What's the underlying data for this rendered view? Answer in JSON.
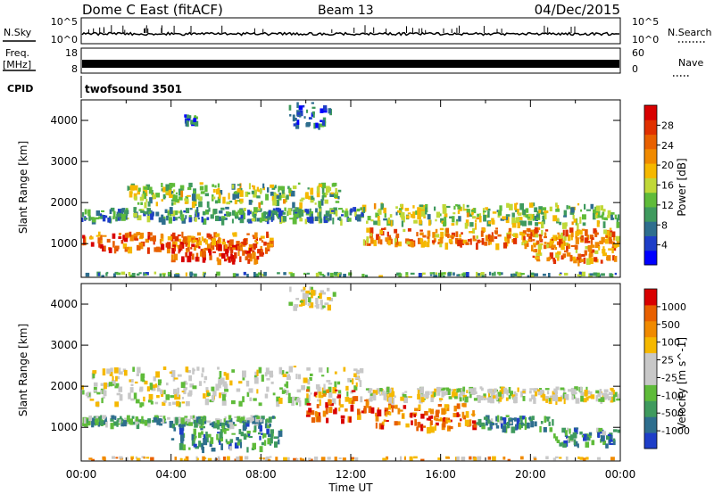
{
  "header": {
    "title": "Dome C East (fitACF)",
    "beam": "Beam 13",
    "date": "04/Dec/2015"
  },
  "noise_panel": {
    "left_label": "N.Sky",
    "left_ticks": [
      "10^5",
      "10^0"
    ],
    "right_ticks": [
      "10^5",
      "10^0"
    ],
    "right_label": "N.Search"
  },
  "freq_panel": {
    "left_label_1": "Freq.",
    "left_label_2": "[MHz]",
    "left_ticks": [
      "18",
      "8"
    ],
    "right_ticks": [
      "60",
      "0"
    ],
    "right_label": "Nave"
  },
  "cpid_panel": {
    "label": "CPID",
    "text": "twofsound 3501"
  },
  "colors": {
    "ink": "#000000",
    "power_scale": [
      "#0000ff",
      "#1e3ec8",
      "#2e6e8e",
      "#3f9a5e",
      "#5fbb3a",
      "#c0d838",
      "#f5b800",
      "#f08a00",
      "#e86000",
      "#e03000",
      "#d80000"
    ],
    "velocity_scale": [
      "#1e3ec8",
      "#2e6e8e",
      "#3f9a5e",
      "#5fbb3a",
      "#c8c8c8",
      "#c8c8c8",
      "#f5b800",
      "#f08a00",
      "#e86000",
      "#d80000"
    ]
  },
  "chart_data": [
    {
      "type": "heatmap",
      "name": "power",
      "xlabel": "",
      "ylabel": "Slant Range [km]",
      "xlim": [
        0,
        24
      ],
      "ylim": [
        180,
        4500
      ],
      "y_ticks": [
        "4000",
        "3000",
        "2000",
        "1000"
      ],
      "colorbar": {
        "label": "Power [dB]",
        "ticks": [
          "28",
          "24",
          "20",
          "16",
          "12",
          "8",
          "4"
        ],
        "range": [
          0,
          30
        ]
      },
      "bands": [
        {
          "t0": 0.0,
          "t1": 12.5,
          "r0": 1600,
          "r1": 1900,
          "level": 0.3
        },
        {
          "t0": 2.0,
          "t1": 11.5,
          "r0": 2000,
          "r1": 2500,
          "level": 0.45
        },
        {
          "t0": 0.0,
          "t1": 8.5,
          "r0": 900,
          "r1": 1300,
          "level": 0.75
        },
        {
          "t0": 4.0,
          "t1": 8.0,
          "r0": 600,
          "r1": 1000,
          "level": 0.85
        },
        {
          "t0": 12.5,
          "t1": 24.0,
          "r0": 1000,
          "r1": 1400,
          "level": 0.7
        },
        {
          "t0": 12.5,
          "t1": 24.0,
          "r0": 1500,
          "r1": 2000,
          "level": 0.45
        },
        {
          "t0": 20.0,
          "t1": 24.0,
          "r0": 600,
          "r1": 1000,
          "level": 0.7
        },
        {
          "t0": 0.0,
          "t1": 24.0,
          "r0": 190,
          "r1": 320,
          "level": 0.35
        },
        {
          "t0": 4.5,
          "t1": 5.2,
          "r0": 3950,
          "r1": 4150,
          "level": 0.2
        },
        {
          "t0": 9.2,
          "t1": 11.2,
          "r0": 3900,
          "r1": 4450,
          "level": 0.2
        }
      ]
    },
    {
      "type": "heatmap",
      "name": "velocity",
      "xlabel": "Time UT",
      "ylabel": "Slant Range [km]",
      "xlim": [
        0,
        24
      ],
      "ylim": [
        180,
        4500
      ],
      "x_ticks": [
        "00:00",
        "04:00",
        "08:00",
        "12:00",
        "16:00",
        "20:00",
        "00:00"
      ],
      "y_ticks": [
        "4000",
        "3000",
        "2000",
        "1000"
      ],
      "colorbar": {
        "label": "Velocity [m s^-1]",
        "ticks": [
          "1000",
          "500",
          "100",
          "25",
          "-25",
          "-100",
          "-500",
          "-1000"
        ],
        "range": [
          -1000,
          1000
        ]
      },
      "bands": [
        {
          "t0": 0.0,
          "t1": 12.5,
          "r0": 1600,
          "r1": 2500,
          "level": 0.5
        },
        {
          "t0": 0.0,
          "t1": 8.5,
          "r0": 1100,
          "r1": 1300,
          "level": 0.3
        },
        {
          "t0": 4.0,
          "t1": 9.0,
          "r0": 500,
          "r1": 1100,
          "level": 0.25
        },
        {
          "t0": 10.0,
          "t1": 13.0,
          "r0": 1200,
          "r1": 2000,
          "level": 0.85
        },
        {
          "t0": 13.0,
          "t1": 17.5,
          "r0": 1000,
          "r1": 1600,
          "level": 0.8
        },
        {
          "t0": 17.5,
          "t1": 21.0,
          "r0": 1000,
          "r1": 1300,
          "level": 0.25
        },
        {
          "t0": 12.5,
          "t1": 24.0,
          "r0": 1700,
          "r1": 2000,
          "level": 0.5
        },
        {
          "t0": 21.0,
          "t1": 24.0,
          "r0": 600,
          "r1": 1000,
          "level": 0.25
        },
        {
          "t0": 0.0,
          "t1": 24.0,
          "r0": 190,
          "r1": 300,
          "level": 0.65
        },
        {
          "t0": 9.2,
          "t1": 11.2,
          "r0": 3900,
          "r1": 4450,
          "level": 0.5
        }
      ]
    }
  ]
}
